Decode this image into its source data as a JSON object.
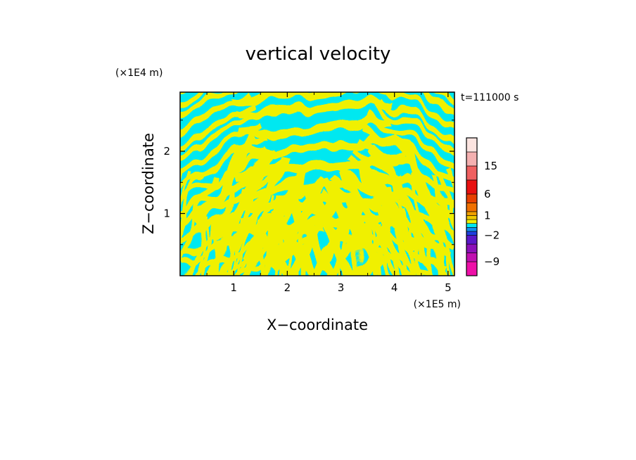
{
  "chart_data": {
    "type": "heatmap",
    "title": "vertical velocity",
    "xlabel": "X−coordinate",
    "ylabel": "Z−coordinate",
    "x_unit": "(×1E5 m)",
    "y_unit": "(×1E4 m)",
    "time_label": "t=111000 s",
    "xlim": [
      0,
      5.12
    ],
    "ylim": [
      0,
      2.95
    ],
    "x_ticks": [
      1,
      2,
      3,
      4,
      5
    ],
    "y_ticks": [
      1,
      2
    ],
    "colorbar": {
      "levels": [
        -12,
        -9,
        -6,
        -4,
        -2,
        -1,
        -0.5,
        0,
        0.5,
        1,
        2,
        4,
        6,
        10,
        15,
        20,
        25
      ],
      "colors": [
        "#ee10a8",
        "#c010b0",
        "#8c10b8",
        "#5a18c8",
        "#2040e0",
        "#1090f0",
        "#00e8f0",
        "#f0f000",
        "#f0c800",
        "#f0a000",
        "#f07000",
        "#e84000",
        "#e81010",
        "#f06060",
        "#f4b0b0",
        "#fce4e0"
      ],
      "tick_labels": [
        "15",
        "6",
        "1",
        "−2",
        "−9"
      ],
      "tick_values": [
        15,
        6,
        1,
        -2,
        -9
      ]
    },
    "grid": false,
    "legend": "none"
  }
}
